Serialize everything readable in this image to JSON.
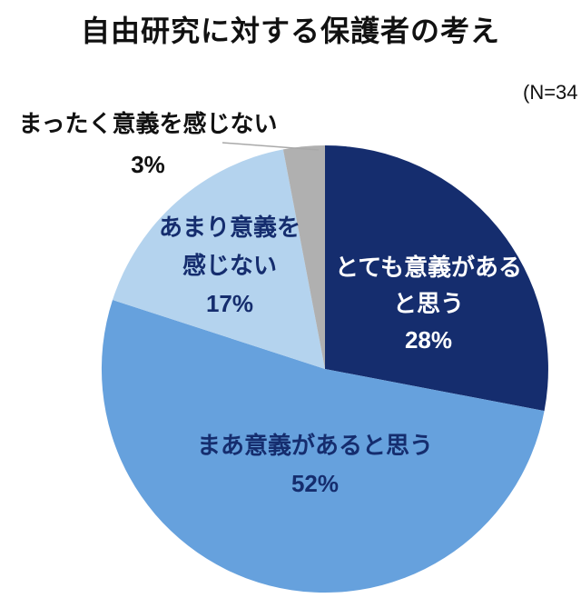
{
  "title": "自由研究に対する保護者の考え",
  "sample_label": "(N=34",
  "chart_data": {
    "type": "pie",
    "title": "自由研究に対する保護者の考え",
    "sample_annotation": "(N=34",
    "start_angle_deg": -90,
    "direction": "clockwise",
    "legend": "none",
    "background": "#FFFFFF",
    "slices": [
      {
        "label": "とても意義があると思う",
        "label_lines": [
          "とても意義がある",
          "と思う"
        ],
        "value": 28,
        "pct_label": "28%",
        "color": "#152D6E",
        "text_color": "#FFFFFF",
        "label_position": "inside"
      },
      {
        "label": "まあ意義があると思う",
        "label_lines": [
          "まあ意義があると思う"
        ],
        "value": 52,
        "pct_label": "52%",
        "color": "#66A1DD",
        "text_color": "#152D6E",
        "label_position": "inside"
      },
      {
        "label": "あまり意義を感じない",
        "label_lines": [
          "あまり意義を",
          "感じない"
        ],
        "value": 17,
        "pct_label": "17%",
        "color": "#B4D3EE",
        "text_color": "#152D6E",
        "label_position": "inside"
      },
      {
        "label": "まったく意義を感じない",
        "label_lines": [
          "まったく意義を感じない"
        ],
        "value": 3,
        "pct_label": "3%",
        "color": "#B0B0B0",
        "text_color": "#111111",
        "label_position": "outside-with-leader-line"
      }
    ]
  }
}
